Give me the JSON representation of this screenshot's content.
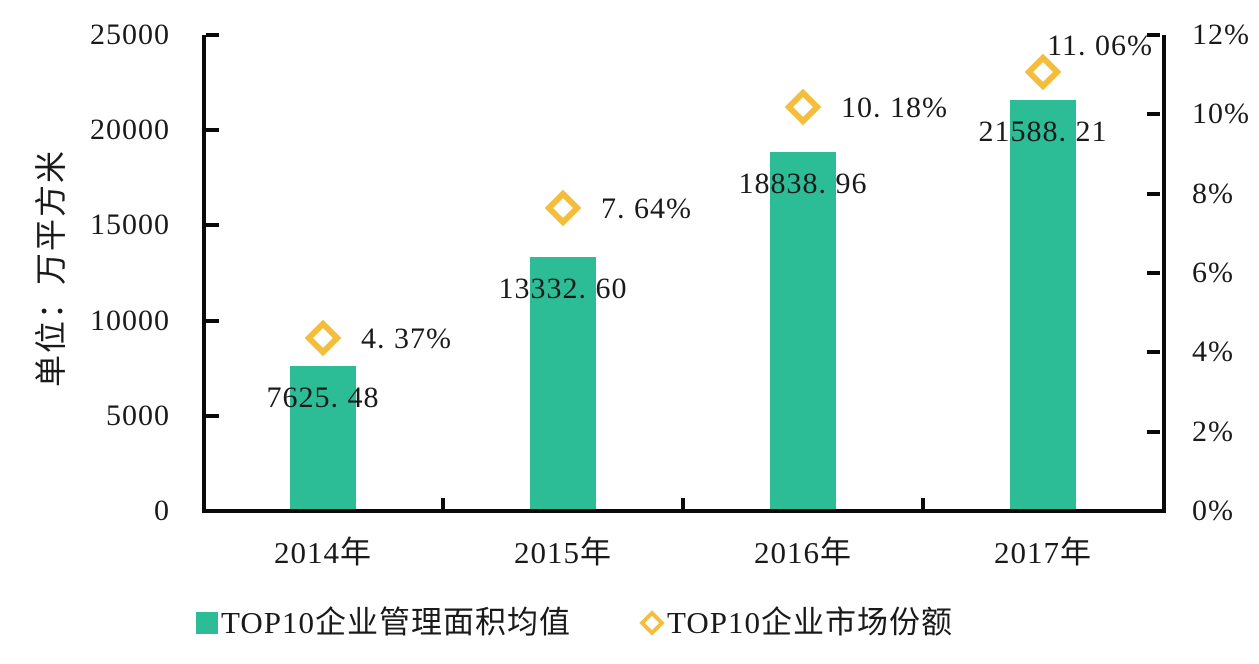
{
  "chart_data": {
    "type": "bar",
    "subtype": "bar-with-scatter-overlay",
    "categories": [
      "2014年",
      "2015年",
      "2016年",
      "2017年"
    ],
    "series": [
      {
        "name": "TOP10企业管理面积均值",
        "type": "bar",
        "yaxis": "left",
        "color": "#2CBD97",
        "values": [
          7625.48,
          13332.6,
          18838.96,
          21588.21
        ],
        "data_labels": [
          "7625. 48",
          "13332. 60",
          "18838. 96",
          "21588. 21"
        ]
      },
      {
        "name": "TOP10企业市场份额",
        "type": "scatter",
        "marker": "hollow-diamond",
        "yaxis": "right",
        "color": "#F4BD3B",
        "values": [
          4.37,
          7.64,
          10.18,
          11.06
        ],
        "data_labels": [
          "4. 37%",
          "7. 64%",
          "10. 18%",
          "11. 06%"
        ],
        "data_label_positions": [
          "right",
          "right",
          "right",
          "above"
        ]
      }
    ],
    "left_axis": {
      "title": "单位：万平方米",
      "min": 0,
      "max": 25000,
      "step": 5000,
      "tick_labels": [
        "0",
        "5000",
        "10000",
        "15000",
        "20000",
        "25000"
      ]
    },
    "right_axis": {
      "min": 0,
      "max": 12,
      "step": 2,
      "tick_labels": [
        "0%",
        "2%",
        "4%",
        "6%",
        "8%",
        "10%",
        "12%"
      ]
    },
    "legend_position": "bottom",
    "grid": false,
    "background": "#FFFFFF",
    "axis_color": "#0A0A0A",
    "text_color": "#1A1A1A"
  }
}
